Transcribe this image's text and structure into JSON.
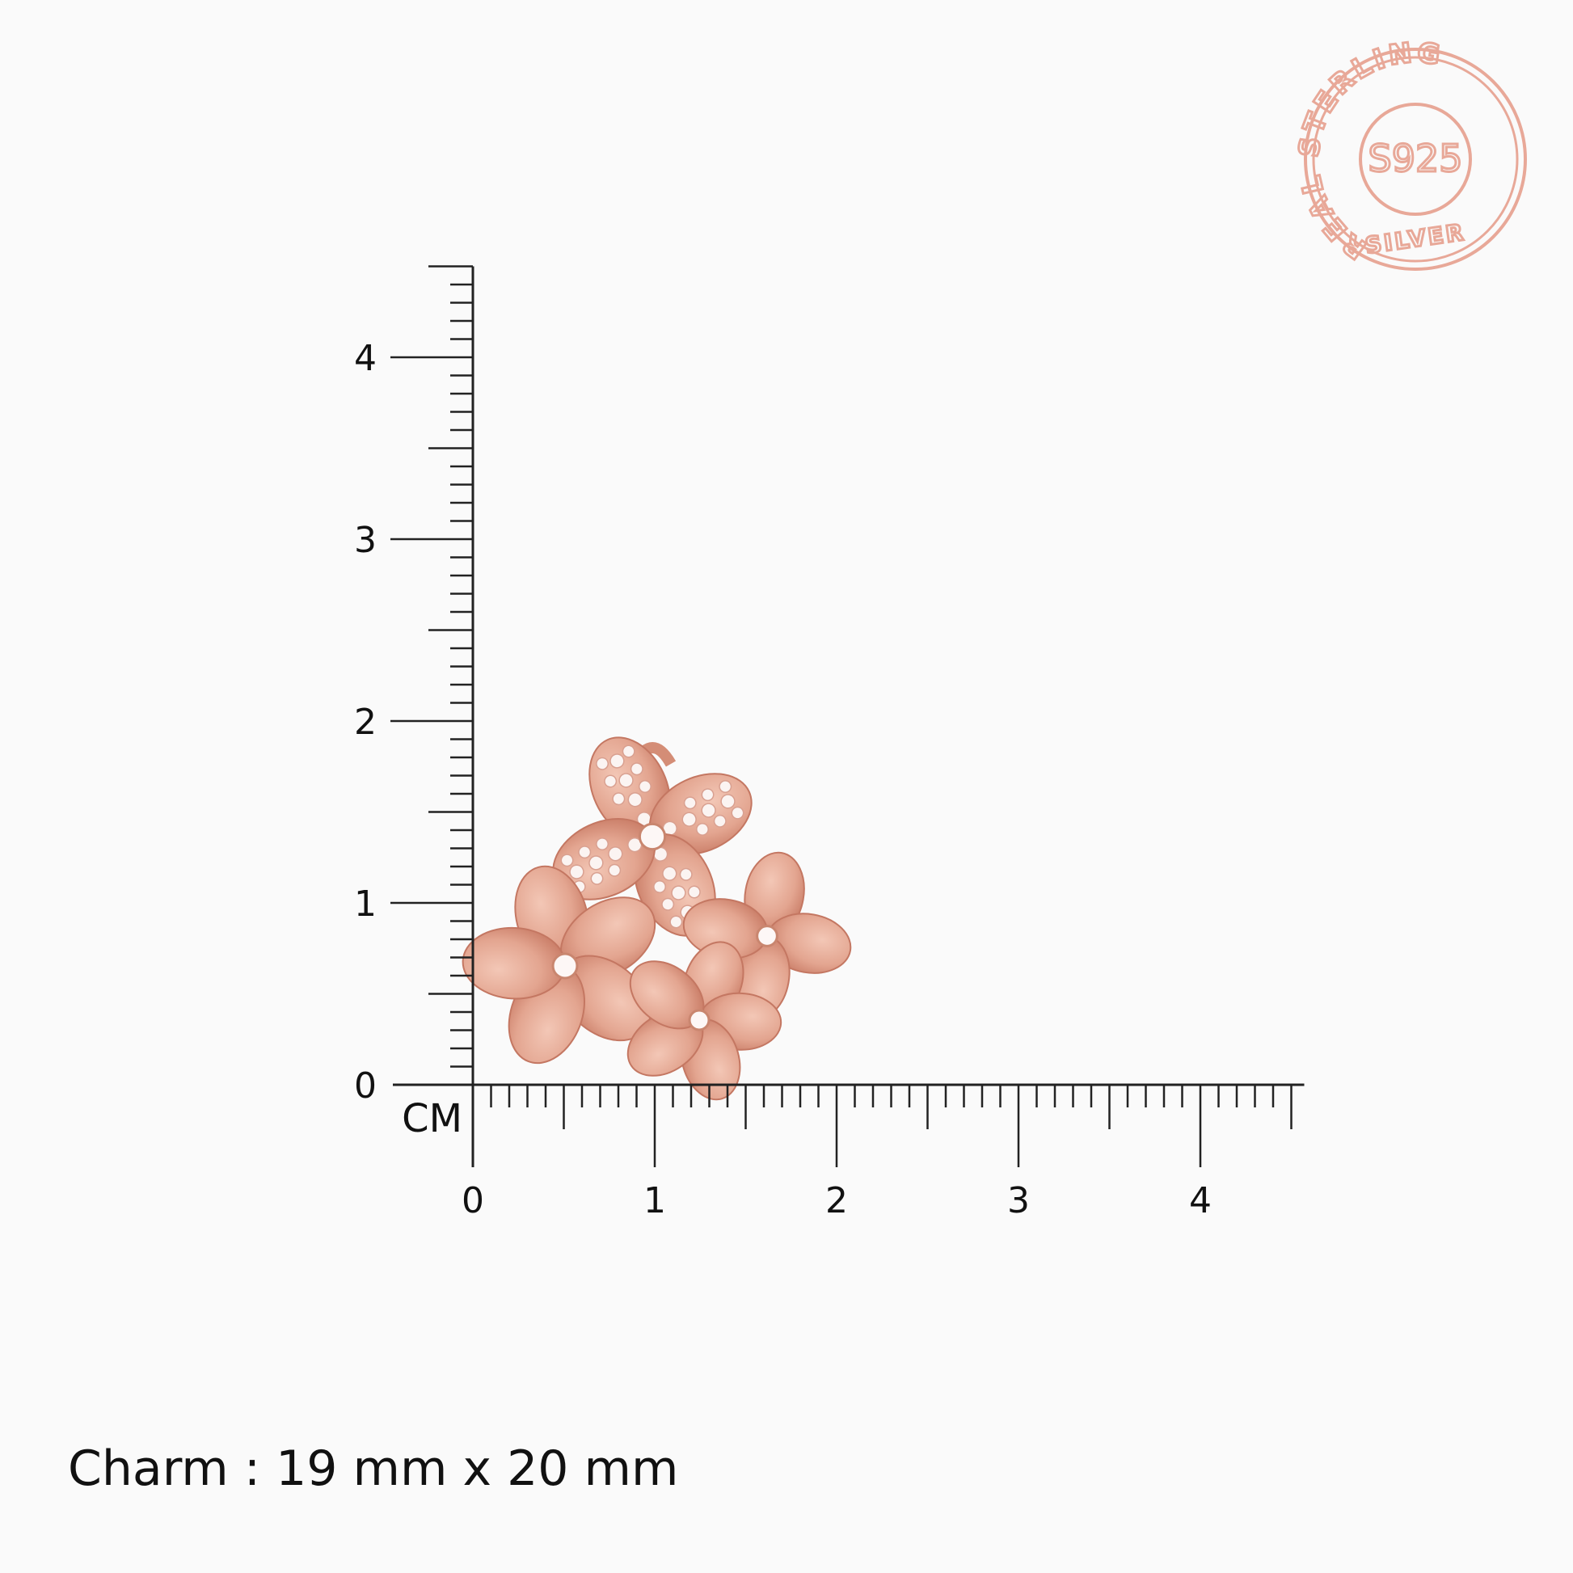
{
  "ruler": {
    "unit_label": "CM",
    "x_ticks": [
      "0",
      "1",
      "2",
      "3",
      "4"
    ],
    "y_ticks": [
      "0",
      "1",
      "2",
      "3",
      "4"
    ],
    "max_cm": 4.5,
    "line_color": "#222222"
  },
  "stamp": {
    "top_text": "REAL STERLING",
    "center_text": "S925",
    "bottom_text": "SILVER",
    "color": "#e8a898"
  },
  "product": {
    "description_icon": "flower-charm-image",
    "metal_color": "#e3a590"
  },
  "caption": "Charm : 19 mm x 20 mm"
}
